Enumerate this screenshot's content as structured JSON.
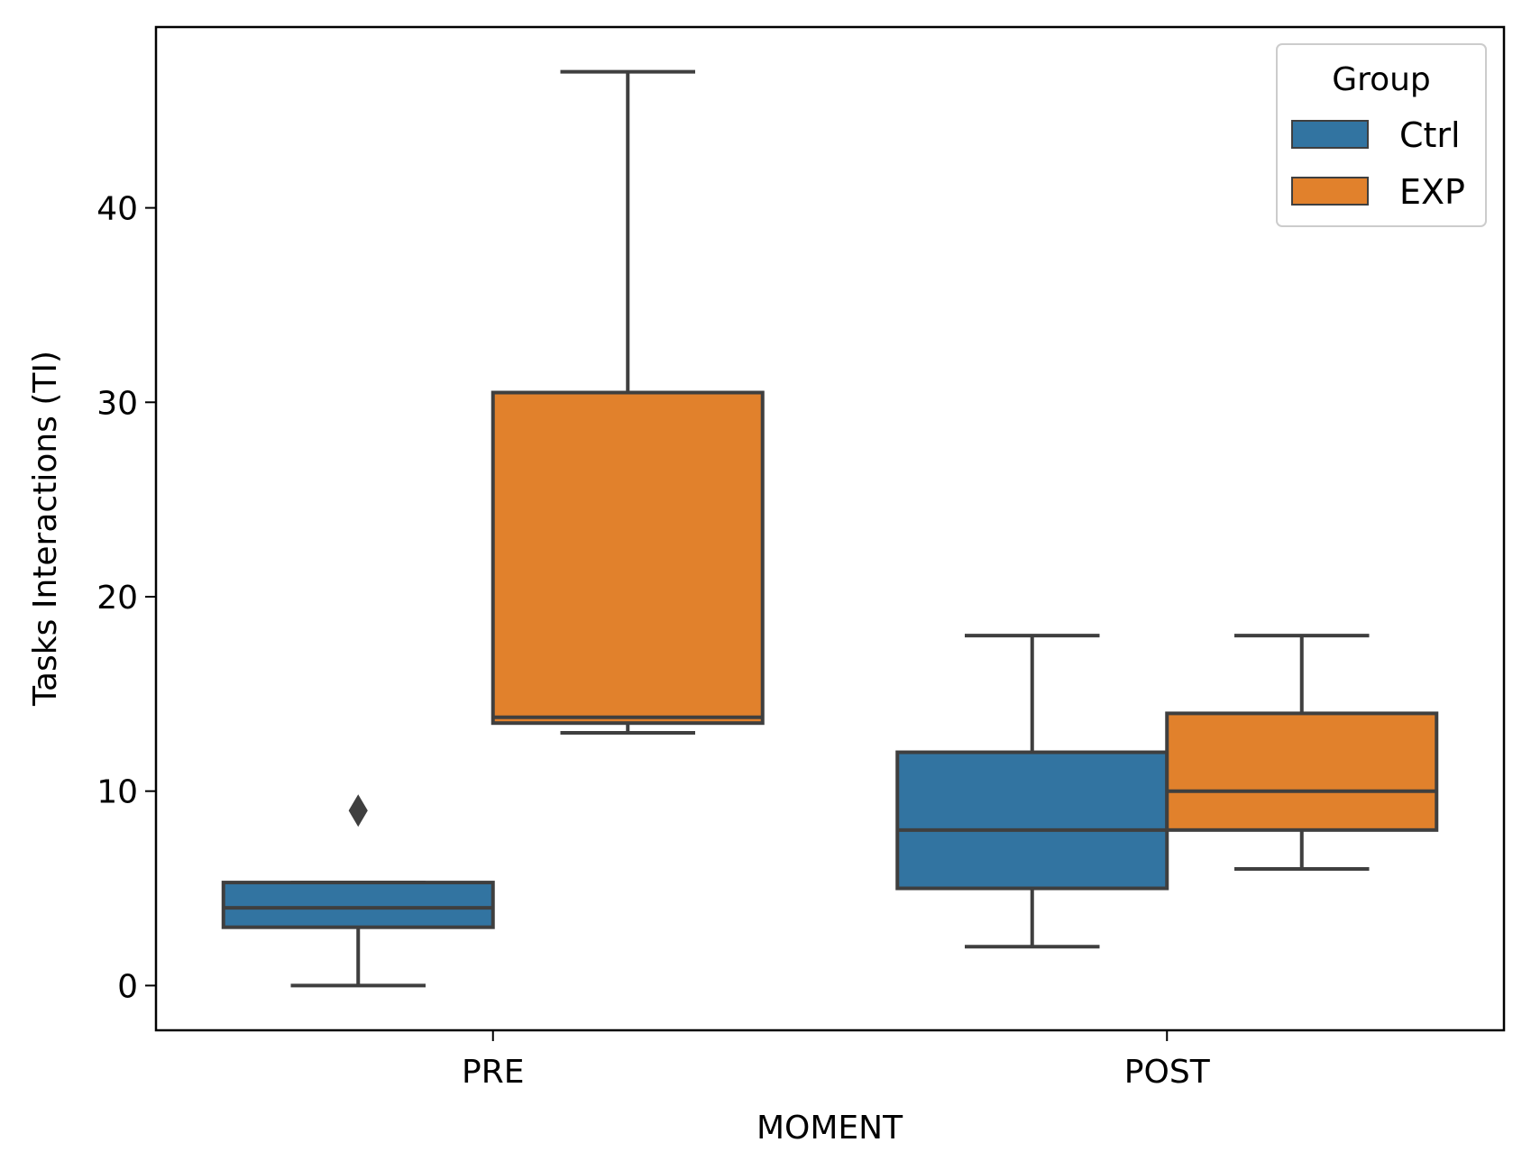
{
  "chart_data": {
    "type": "box",
    "title": "",
    "xlabel": "MOMENT",
    "ylabel": "Tasks Interactions (TI)",
    "ylim": [
      -2.3,
      49.3
    ],
    "yticks": [
      0,
      10,
      20,
      30,
      40
    ],
    "categories": [
      "PRE",
      "POST"
    ],
    "grid": false,
    "legend": {
      "title": "Group",
      "placement": "top-right"
    },
    "series": [
      {
        "name": "Ctrl",
        "color": "#3274a1",
        "boxes": [
          {
            "category": "PRE",
            "whisker_low": 0,
            "q1": 3,
            "median": 4,
            "q3": 5.3,
            "whisker_high": 5.3,
            "outliers": [
              9
            ]
          },
          {
            "category": "POST",
            "whisker_low": 2,
            "q1": 5,
            "median": 8,
            "q3": 12,
            "whisker_high": 18,
            "outliers": []
          }
        ]
      },
      {
        "name": "EXP",
        "color": "#e1812c",
        "boxes": [
          {
            "category": "PRE",
            "whisker_low": 13,
            "q1": 13.5,
            "median": 13.8,
            "q3": 30.5,
            "whisker_high": 47,
            "outliers": []
          },
          {
            "category": "POST",
            "whisker_low": 6,
            "q1": 8,
            "median": 10,
            "q3": 14,
            "whisker_high": 18,
            "outliers": []
          }
        ]
      }
    ],
    "edge_color": "#3f3f3f"
  }
}
